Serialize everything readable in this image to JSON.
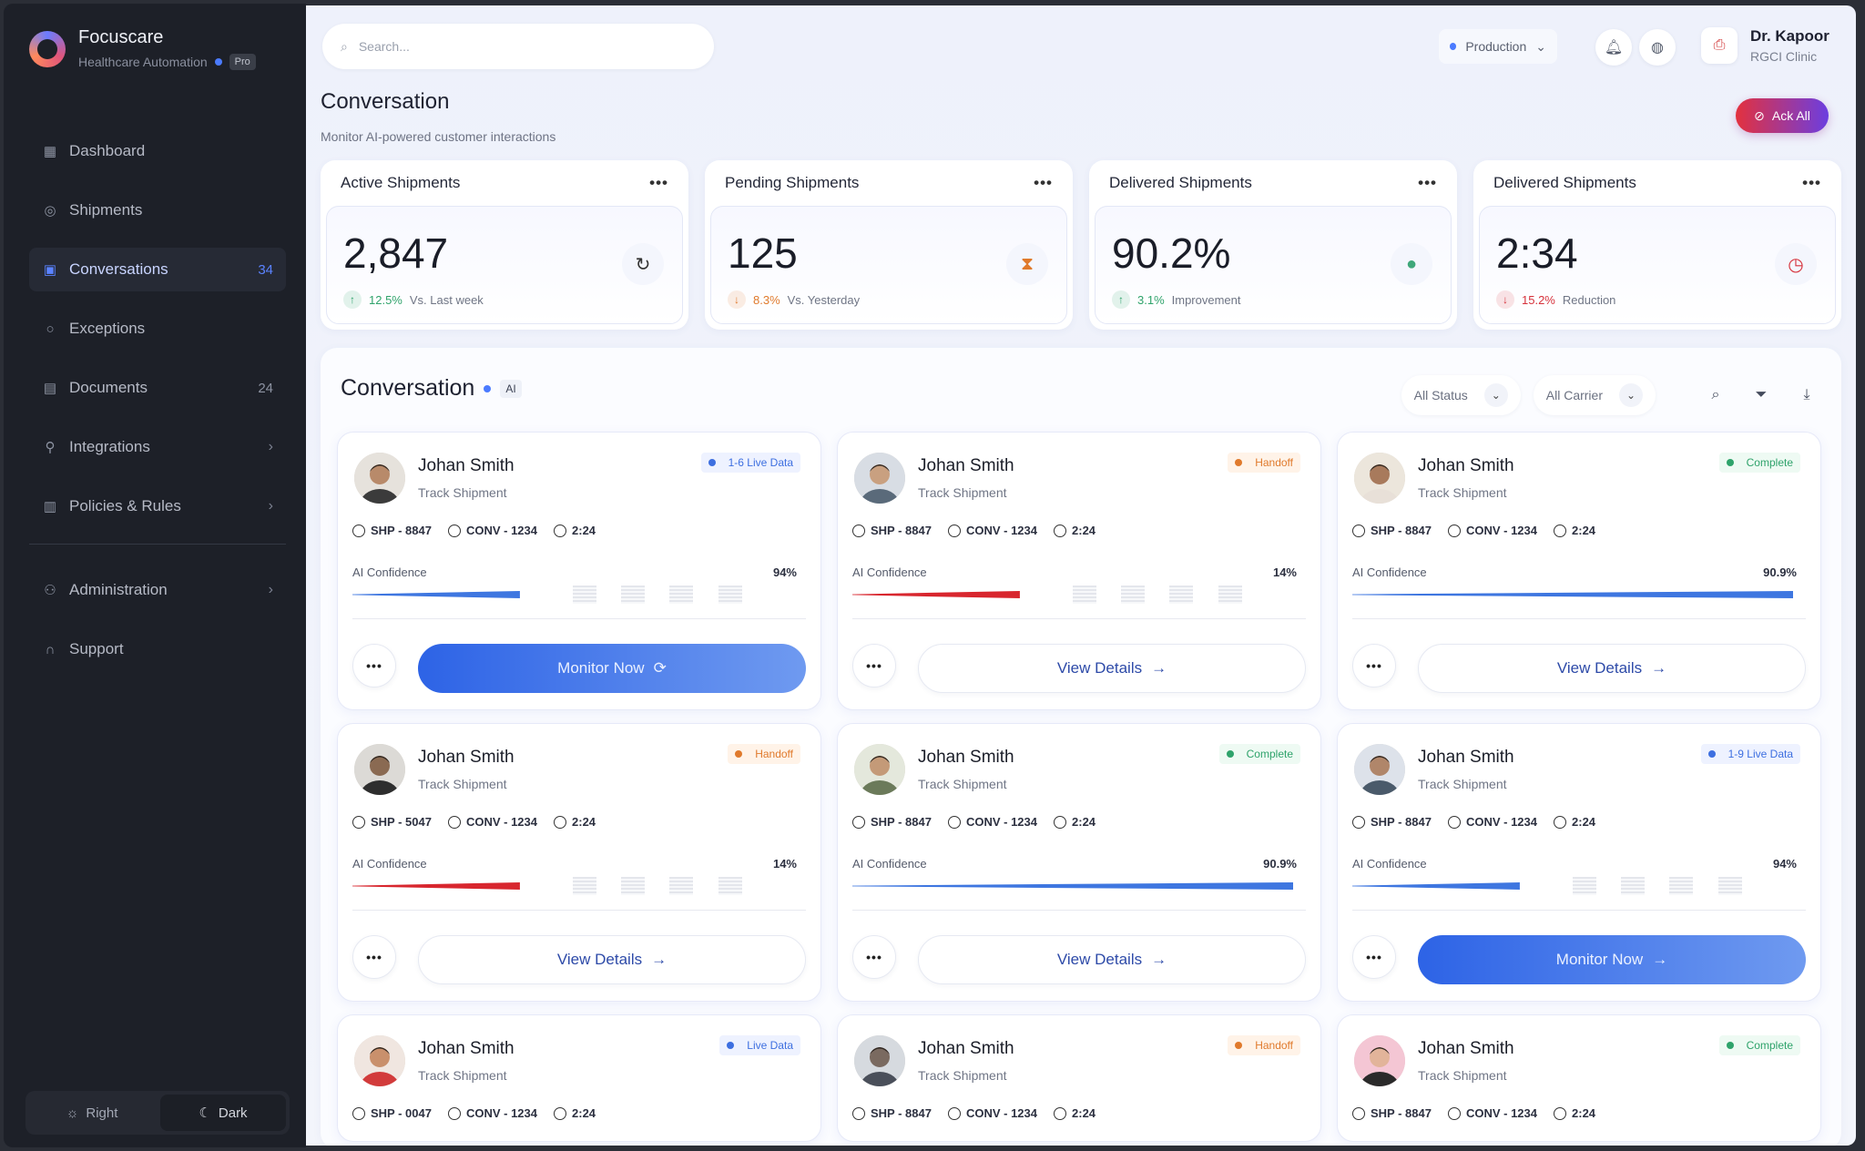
{
  "app": {
    "name": "Focuscare",
    "subtitle": "Healthcare Automation",
    "plan": "Pro"
  },
  "sidebar": {
    "items": [
      {
        "label": "Dashboard",
        "icon": "dashboard-icon",
        "badge": "",
        "chevron": false,
        "active": false
      },
      {
        "label": "Shipments",
        "icon": "shipments-icon",
        "badge": "",
        "chevron": false,
        "active": false
      },
      {
        "label": "Conversations",
        "icon": "chat-icon",
        "badge": "34",
        "chevron": false,
        "active": true
      },
      {
        "label": "Exceptions",
        "icon": "circle-icon",
        "badge": "",
        "chevron": false,
        "active": false
      },
      {
        "label": "Documents",
        "icon": "document-icon",
        "badge": "24",
        "chevron": false,
        "active": false
      },
      {
        "label": "Integrations",
        "icon": "link-icon",
        "badge": "",
        "chevron": true,
        "active": false
      },
      {
        "label": "Policies & Rules",
        "icon": "policy-icon",
        "badge": "",
        "chevron": true,
        "active": false
      }
    ],
    "secondary": [
      {
        "label": "Administration",
        "icon": "admin-icon",
        "chevron": true
      },
      {
        "label": "Support",
        "icon": "headset-icon",
        "chevron": false
      }
    ],
    "theme": {
      "light": "Right",
      "dark": "Dark"
    }
  },
  "topbar": {
    "search_placeholder": "Search...",
    "environment": "Production",
    "user_name": "Dr. Kapoor",
    "user_clinic": "RGCI Clinic"
  },
  "page": {
    "title": "Conversation",
    "subtitle": "Monitor AI-powered customer interactions",
    "ack_all": "Ack All"
  },
  "stats": [
    {
      "title": "Active Shipments",
      "value": "2,847",
      "trend_value": "12.5%",
      "trend_label": "Vs. Last week",
      "direction": "up",
      "trend_color": "#2fa36b",
      "icon": "refresh-icon",
      "icon_glyph": "↻",
      "icon_color": "#333"
    },
    {
      "title": "Pending Shipments",
      "value": "125",
      "trend_value": "8.3%",
      "trend_label": "Vs. Yesterday",
      "direction": "down",
      "trend_color": "#e07a2c",
      "icon": "hourglass-icon",
      "icon_glyph": "⧗",
      "icon_color": "#e07a2c"
    },
    {
      "title": "Delivered Shipments",
      "value": "90.2%",
      "trend_value": "3.1%",
      "trend_label": "Improvement",
      "direction": "up",
      "trend_color": "#2fa36b",
      "icon": "check-shield-icon",
      "icon_glyph": "●",
      "icon_color": "#3fa77a"
    },
    {
      "title": "Delivered Shipments",
      "value": "2:34",
      "trend_value": "15.2%",
      "trend_label": "Reduction",
      "direction": "down",
      "trend_color": "#d6313b",
      "icon": "clock-icon",
      "icon_glyph": "◷",
      "icon_color": "#d6313b"
    }
  ],
  "panel": {
    "title": "Conversation",
    "tag": "AI",
    "filter_status": "All Status",
    "filter_carrier": "All Carrier"
  },
  "cards": [
    {
      "name": "Johan Smith",
      "task": "Track Shipment",
      "status": "1-6  Live Data",
      "status_color": "#3d6fe0",
      "status_bg": "#eef2ff",
      "ship": "SHP - 8847",
      "conv": "CONV - 1234",
      "time": "2:24",
      "conf_label": "AI Confidence",
      "conf": "94%",
      "conf_level": 0.38,
      "bar_color": "#3e76e0",
      "action": "Monitor Now",
      "primary": true
    },
    {
      "name": "Johan Smith",
      "task": "Track Shipment",
      "status": "Handoff",
      "status_color": "#e07a2c",
      "status_bg": "#fff3e8",
      "ship": "SHP - 8847",
      "conv": "CONV - 1234",
      "time": "2:24",
      "conf_label": "AI Confidence",
      "conf": "14%",
      "conf_level": 0.38,
      "bar_color": "#d8262e",
      "action": "View Details",
      "primary": false
    },
    {
      "name": "Johan Smith",
      "task": "Track Shipment",
      "status": "Complete",
      "status_color": "#2fa36b",
      "status_bg": "#eefaf3",
      "ship": "SHP - 8847",
      "conv": "CONV - 1234",
      "time": "2:24",
      "conf_label": "AI Confidence",
      "conf": "90.9%",
      "conf_level": 1.0,
      "bar_color": "#3e76e0",
      "action": "View Details",
      "primary": false
    },
    {
      "name": "Johan Smith",
      "task": "Track Shipment",
      "status": "Handoff",
      "status_color": "#e07a2c",
      "status_bg": "#fff3e8",
      "ship": "SHP - 5047",
      "conv": "CONV - 1234",
      "time": "2:24",
      "conf_label": "AI Confidence",
      "conf": "14%",
      "conf_level": 0.38,
      "bar_color": "#d8262e",
      "action": "View Details",
      "primary": false
    },
    {
      "name": "Johan Smith",
      "task": "Track Shipment",
      "status": "Complete",
      "status_color": "#2fa36b",
      "status_bg": "#eefaf3",
      "ship": "SHP - 8847",
      "conv": "CONV - 1234",
      "time": "2:24",
      "conf_label": "AI Confidence",
      "conf": "90.9%",
      "conf_level": 1.0,
      "bar_color": "#3e76e0",
      "action": "View Details",
      "primary": false
    },
    {
      "name": "Johan Smith",
      "task": "Track Shipment",
      "status": "1-9  Live Data",
      "status_color": "#3d6fe0",
      "status_bg": "#eef2ff",
      "ship": "SHP - 8847",
      "conv": "CONV - 1234",
      "time": "2:24",
      "conf_label": "AI Confidence",
      "conf": "94%",
      "conf_level": 0.38,
      "bar_color": "#3e76e0",
      "action": "Monitor Now",
      "primary": true
    },
    {
      "name": "Johan Smith",
      "task": "Track Shipment",
      "status": "Live Data",
      "status_color": "#3d6fe0",
      "status_bg": "#eef2ff",
      "ship": "SHP - 0047",
      "conv": "CONV - 1234",
      "time": "2:24"
    },
    {
      "name": "Johan Smith",
      "task": "Track Shipment",
      "status": "Handoff",
      "status_color": "#e07a2c",
      "status_bg": "#fff3e8",
      "ship": "SHP - 8847",
      "conv": "CONV - 1234",
      "time": "2:24"
    },
    {
      "name": "Johan Smith",
      "task": "Track Shipment",
      "status": "Complete",
      "status_color": "#2fa36b",
      "status_bg": "#eefaf3",
      "ship": "SHP - 8847",
      "conv": "CONV - 1234",
      "time": "2:24"
    }
  ]
}
